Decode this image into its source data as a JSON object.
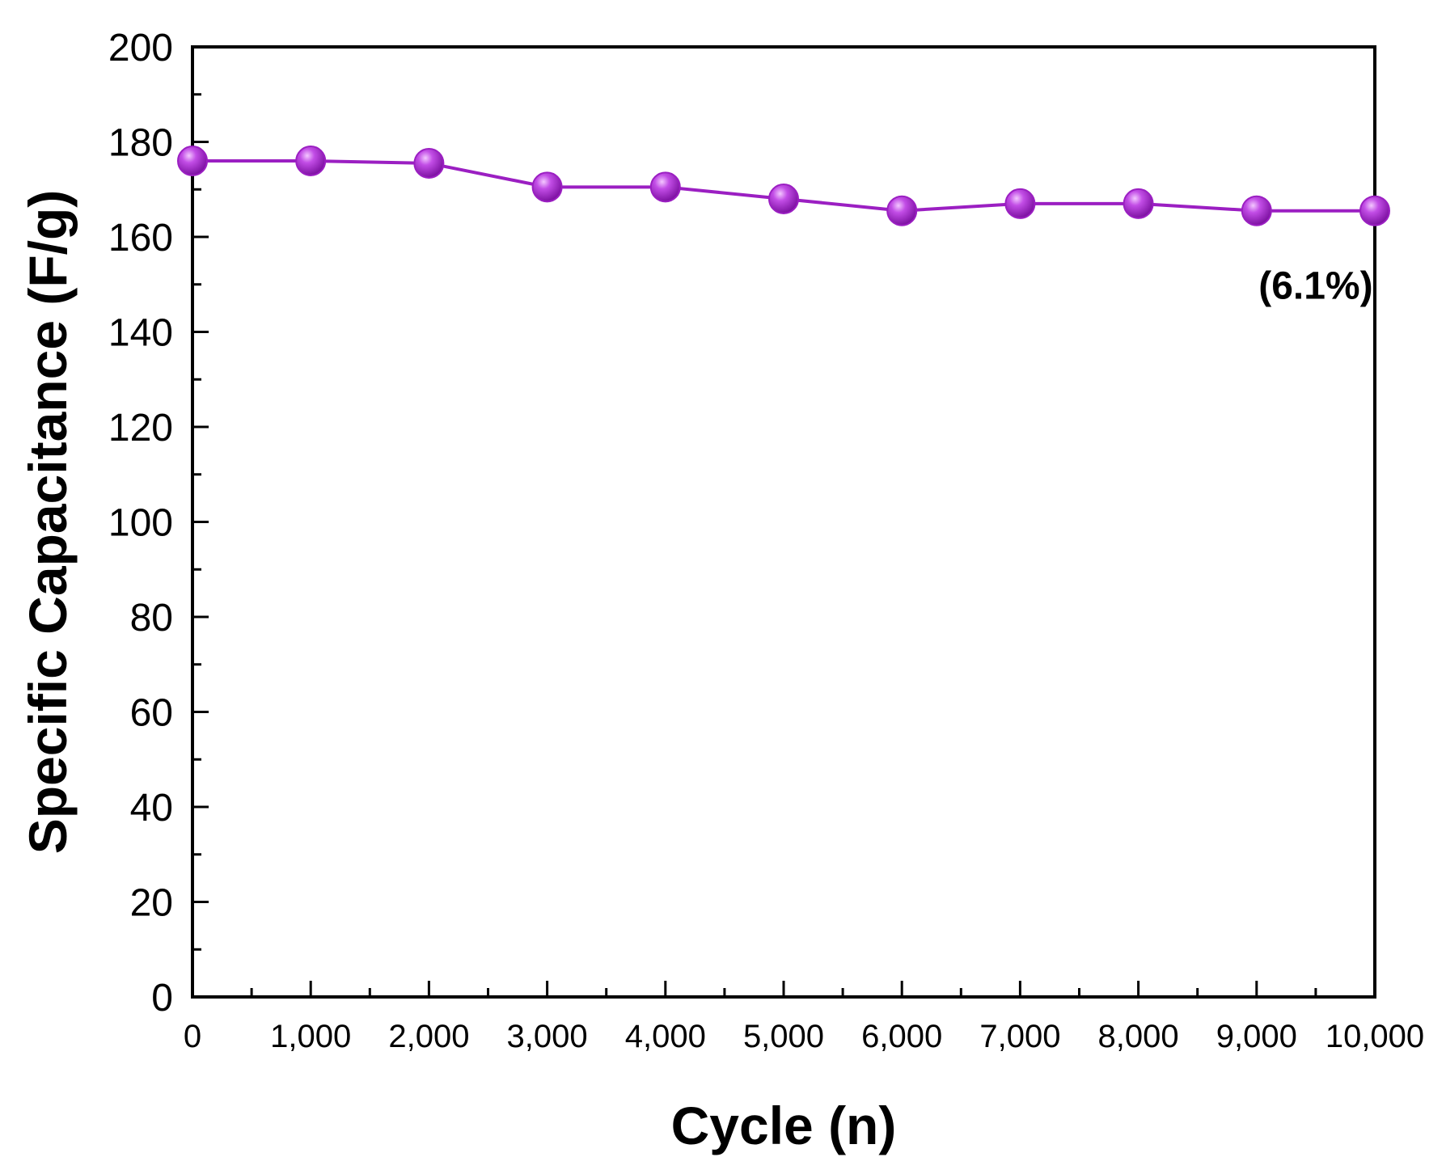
{
  "chart_data": {
    "type": "line",
    "title": "",
    "xlabel": "Cycle (n)",
    "ylabel": "Specific Capacitance (F/g)",
    "xlim": [
      0,
      10000
    ],
    "ylim": [
      0,
      200
    ],
    "x_ticks": [
      0,
      1000,
      2000,
      3000,
      4000,
      5000,
      6000,
      7000,
      8000,
      9000,
      10000
    ],
    "x_tick_labels": [
      "0",
      "1,000",
      "2,000",
      "3,000",
      "4,000",
      "5,000",
      "6,000",
      "7,000",
      "8,000",
      "9,000",
      "10,000"
    ],
    "y_ticks": [
      0,
      20,
      40,
      60,
      80,
      100,
      120,
      140,
      160,
      180,
      200
    ],
    "y_tick_labels": [
      "0",
      "20",
      "40",
      "60",
      "80",
      "100",
      "120",
      "140",
      "160",
      "180",
      "200"
    ],
    "grid": false,
    "series": [
      {
        "name": "Specific Capacitance",
        "color": "#9b1fc2",
        "marker": "circle",
        "x": [
          0,
          1000,
          2000,
          3000,
          4000,
          5000,
          6000,
          7000,
          8000,
          9000,
          10000
        ],
        "values": [
          176,
          176,
          175.5,
          170.5,
          170.5,
          168,
          165.5,
          167,
          167,
          165.5,
          165.5
        ]
      }
    ],
    "annotations": [
      {
        "text": "(6.1%)",
        "x": 9500,
        "y": 147
      }
    ]
  }
}
